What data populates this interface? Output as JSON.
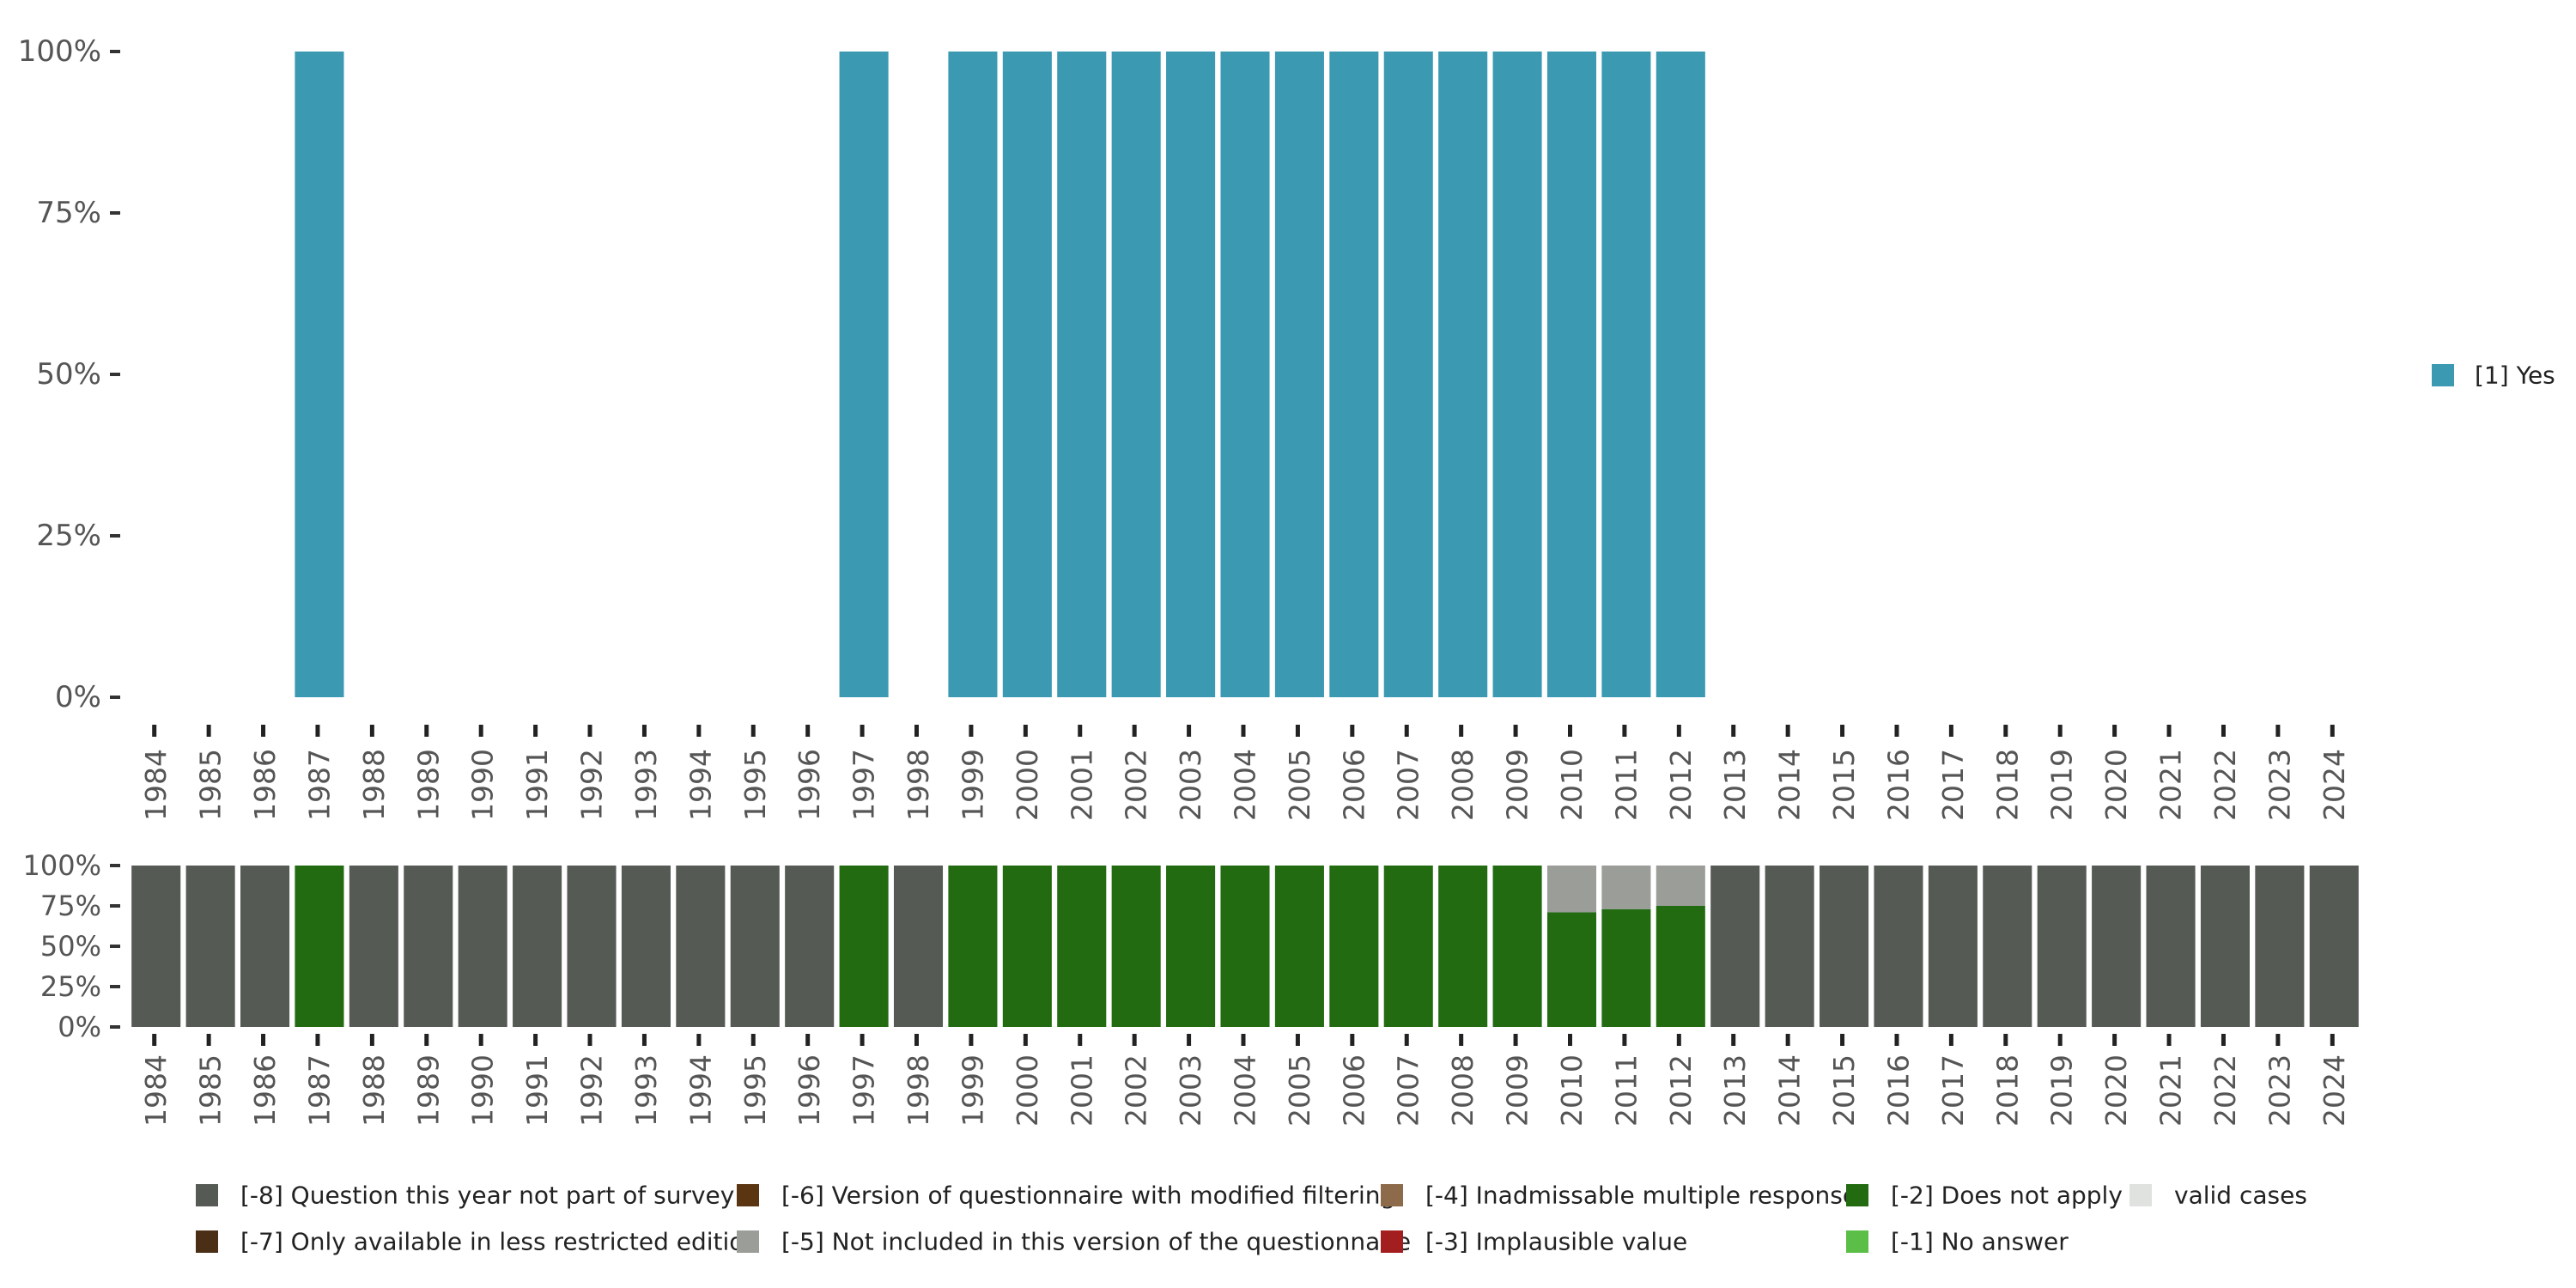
{
  "chart_data": [
    {
      "type": "bar",
      "stacked": true,
      "title": "",
      "xlabel": "",
      "ylabel": "",
      "ylim": [
        0,
        100
      ],
      "y_ticks": [
        "0%",
        "25%",
        "50%",
        "75%",
        "100%"
      ],
      "categories": [
        "1984",
        "1985",
        "1986",
        "1987",
        "1988",
        "1989",
        "1990",
        "1991",
        "1992",
        "1993",
        "1994",
        "1995",
        "1996",
        "1997",
        "1998",
        "1999",
        "2000",
        "2001",
        "2002",
        "2003",
        "2004",
        "2005",
        "2006",
        "2007",
        "2008",
        "2009",
        "2010",
        "2011",
        "2012",
        "2013",
        "2014",
        "2015",
        "2016",
        "2017",
        "2018",
        "2019",
        "2020",
        "2021",
        "2022",
        "2023",
        "2024"
      ],
      "series": [
        {
          "name": "[1] Yes",
          "color": "#3b9ab2",
          "values": [
            null,
            null,
            null,
            100,
            null,
            null,
            null,
            null,
            null,
            null,
            null,
            null,
            null,
            100,
            null,
            100,
            100,
            100,
            100,
            100,
            100,
            100,
            100,
            100,
            100,
            100,
            100,
            100,
            100,
            null,
            null,
            null,
            null,
            null,
            null,
            null,
            null,
            null,
            null,
            null,
            null
          ]
        }
      ],
      "legend": {
        "position": "right",
        "items": [
          {
            "label": "[1] Yes",
            "color": "#3b9ab2"
          }
        ]
      }
    },
    {
      "type": "bar",
      "stacked": true,
      "title": "",
      "xlabel": "",
      "ylabel": "",
      "ylim": [
        0,
        100
      ],
      "y_ticks": [
        "0%",
        "25%",
        "50%",
        "75%",
        "100%"
      ],
      "categories": [
        "1984",
        "1985",
        "1986",
        "1987",
        "1988",
        "1989",
        "1990",
        "1991",
        "1992",
        "1993",
        "1994",
        "1995",
        "1996",
        "1997",
        "1998",
        "1999",
        "2000",
        "2001",
        "2002",
        "2003",
        "2004",
        "2005",
        "2006",
        "2007",
        "2008",
        "2009",
        "2010",
        "2011",
        "2012",
        "2013",
        "2014",
        "2015",
        "2016",
        "2017",
        "2018",
        "2019",
        "2020",
        "2021",
        "2022",
        "2023",
        "2024"
      ],
      "series": [
        {
          "name": "[-2] Does not apply",
          "color": "#226b11",
          "values": [
            0,
            0,
            0,
            100,
            0,
            0,
            0,
            0,
            0,
            0,
            0,
            0,
            0,
            100,
            0,
            100,
            100,
            100,
            100,
            100,
            100,
            100,
            100,
            100,
            100,
            100,
            71,
            73,
            75,
            0,
            0,
            0,
            0,
            0,
            0,
            0,
            0,
            0,
            0,
            0,
            0
          ]
        },
        {
          "name": "[-5] Not included in this version of the questionnaire",
          "color": "#9a9d98",
          "values": [
            0,
            0,
            0,
            0,
            0,
            0,
            0,
            0,
            0,
            0,
            0,
            0,
            0,
            0,
            0,
            0,
            0,
            0,
            0,
            0,
            0,
            0,
            0,
            0,
            0,
            0,
            29,
            27,
            25,
            0,
            0,
            0,
            0,
            0,
            0,
            0,
            0,
            0,
            0,
            0,
            0
          ]
        },
        {
          "name": "[-8] Question this year not part of survey",
          "color": "#555a55",
          "values": [
            100,
            100,
            100,
            0,
            100,
            100,
            100,
            100,
            100,
            100,
            100,
            100,
            100,
            0,
            100,
            0,
            0,
            0,
            0,
            0,
            0,
            0,
            0,
            0,
            0,
            0,
            0,
            0,
            0,
            100,
            100,
            100,
            100,
            100,
            100,
            100,
            100,
            100,
            100,
            100,
            100
          ]
        }
      ],
      "legend": {
        "position": "bottom",
        "items": [
          {
            "label": "[-8] Question this year not part of survey",
            "color": "#555a55"
          },
          {
            "label": "[-7] Only available in less restricted edition",
            "color": "#4a2f16"
          },
          {
            "label": "[-6] Version of questionnaire with modified filtering",
            "color": "#5b3512"
          },
          {
            "label": "[-5] Not included in this version of the questionnaire",
            "color": "#9a9d98"
          },
          {
            "label": "[-4] Inadmissable multiple response",
            "color": "#8c6a4a"
          },
          {
            "label": "[-3] Implausible value",
            "color": "#a31e1e"
          },
          {
            "label": "[-2] Does not apply",
            "color": "#226b11"
          },
          {
            "label": "[-1] No answer",
            "color": "#5bbf47"
          },
          {
            "label": "valid cases",
            "color": "#e0e2df"
          }
        ]
      }
    }
  ]
}
